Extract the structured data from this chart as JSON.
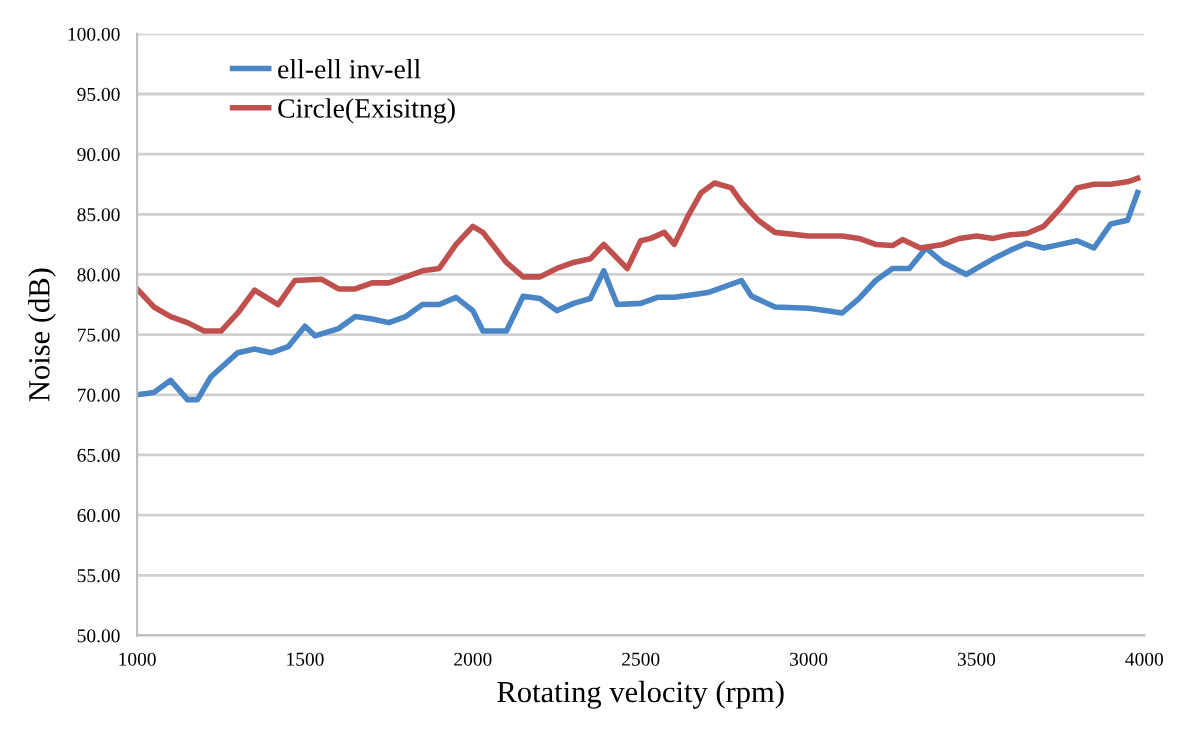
{
  "chart_data": {
    "type": "line",
    "xlabel": "Rotating velocity (rpm)",
    "ylabel": "Noise (dB)",
    "xlim": [
      1000,
      4000
    ],
    "xticks": [
      1000,
      1500,
      2000,
      2500,
      3000,
      3500,
      4000
    ],
    "ylim": [
      50,
      100
    ],
    "yticks": [
      {
        "value": 50,
        "label": "50.00"
      },
      {
        "value": 55,
        "label": "55.00"
      },
      {
        "value": 60,
        "label": "60.00"
      },
      {
        "value": 65,
        "label": "65.00"
      },
      {
        "value": 70,
        "label": "70.00"
      },
      {
        "value": 75,
        "label": "75.00"
      },
      {
        "value": 80,
        "label": "80.00"
      },
      {
        "value": 85,
        "label": "85.00"
      },
      {
        "value": 90,
        "label": "90.00"
      },
      {
        "value": 95,
        "label": "95.00"
      },
      {
        "value": 100,
        "label": "100.00"
      }
    ],
    "grid": "y",
    "legend": "top left",
    "marker": "none",
    "line_style": "solid",
    "series": [
      {
        "name": "ell-ell inv-ell",
        "color": "#4a86c5",
        "x": [
          1000,
          1050,
          1100,
          1150,
          1180,
          1220,
          1300,
          1350,
          1400,
          1450,
          1500,
          1530,
          1600,
          1650,
          1700,
          1750,
          1800,
          1850,
          1900,
          1950,
          2000,
          2030,
          2100,
          2150,
          2200,
          2250,
          2300,
          2350,
          2390,
          2430,
          2500,
          2550,
          2600,
          2650,
          2700,
          2750,
          2800,
          2830,
          2900,
          3000,
          3050,
          3100,
          3150,
          3200,
          3250,
          3300,
          3350,
          3400,
          3470,
          3500,
          3550,
          3600,
          3650,
          3700,
          3750,
          3800,
          3850,
          3900,
          3950,
          3980
        ],
        "values": [
          70.0,
          70.2,
          71.2,
          69.6,
          69.6,
          71.5,
          73.5,
          73.8,
          73.5,
          74.0,
          75.7,
          74.9,
          75.5,
          76.5,
          76.3,
          76.0,
          76.5,
          77.5,
          77.5,
          78.1,
          77.0,
          75.3,
          75.3,
          78.2,
          78.0,
          77.0,
          77.6,
          78.0,
          80.3,
          77.5,
          77.6,
          78.1,
          78.1,
          78.3,
          78.5,
          79.0,
          79.5,
          78.2,
          77.3,
          77.2,
          77.0,
          76.8,
          78.0,
          79.5,
          80.5,
          80.5,
          82.2,
          81.0,
          80.0,
          80.5,
          81.3,
          82.0,
          82.6,
          82.2,
          82.5,
          82.8,
          82.2,
          84.2,
          84.5,
          86.8
        ]
      },
      {
        "name": "Circle(Exisitng)",
        "color": "#c0504d",
        "x": [
          1000,
          1050,
          1100,
          1150,
          1200,
          1250,
          1300,
          1350,
          1420,
          1470,
          1550,
          1600,
          1650,
          1700,
          1750,
          1800,
          1850,
          1900,
          1950,
          2000,
          2030,
          2100,
          2150,
          2200,
          2250,
          2300,
          2350,
          2390,
          2460,
          2500,
          2530,
          2570,
          2600,
          2640,
          2680,
          2720,
          2770,
          2800,
          2850,
          2900,
          3000,
          3100,
          3150,
          3200,
          3250,
          3280,
          3333,
          3400,
          3450,
          3500,
          3550,
          3600,
          3650,
          3700,
          3750,
          3800,
          3850,
          3900,
          3950,
          3980
        ],
        "values": [
          78.8,
          77.3,
          76.5,
          76.0,
          75.3,
          75.3,
          76.8,
          78.7,
          77.5,
          79.5,
          79.6,
          78.8,
          78.8,
          79.3,
          79.3,
          79.8,
          80.3,
          80.5,
          82.5,
          84.0,
          83.5,
          81.0,
          79.8,
          79.8,
          80.5,
          81.0,
          81.3,
          82.5,
          80.5,
          82.8,
          83.0,
          83.5,
          82.5,
          84.8,
          86.8,
          87.6,
          87.2,
          86.0,
          84.5,
          83.5,
          83.2,
          83.2,
          83.0,
          82.5,
          82.4,
          82.9,
          82.2,
          82.5,
          83.0,
          83.2,
          83.0,
          83.3,
          83.4,
          84.0,
          85.5,
          87.2,
          87.5,
          87.5,
          87.7,
          88.0
        ]
      }
    ]
  }
}
